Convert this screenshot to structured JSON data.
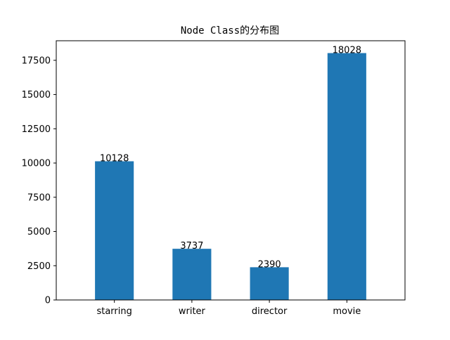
{
  "chart_data": {
    "type": "bar",
    "title": "Node Class的分布图",
    "xlabel": "",
    "ylabel": "",
    "categories": [
      "starring",
      "writer",
      "director",
      "movie"
    ],
    "values": [
      10128,
      3737,
      2390,
      18028
    ],
    "data_labels": [
      "10128",
      "3737",
      "2390",
      "18028"
    ],
    "ylim": [
      0,
      18928
    ],
    "yticks": [
      0,
      2500,
      5000,
      7500,
      10000,
      12500,
      15000,
      17500
    ],
    "grid": false,
    "legend": "none",
    "bar_color": "#1f77b4"
  }
}
